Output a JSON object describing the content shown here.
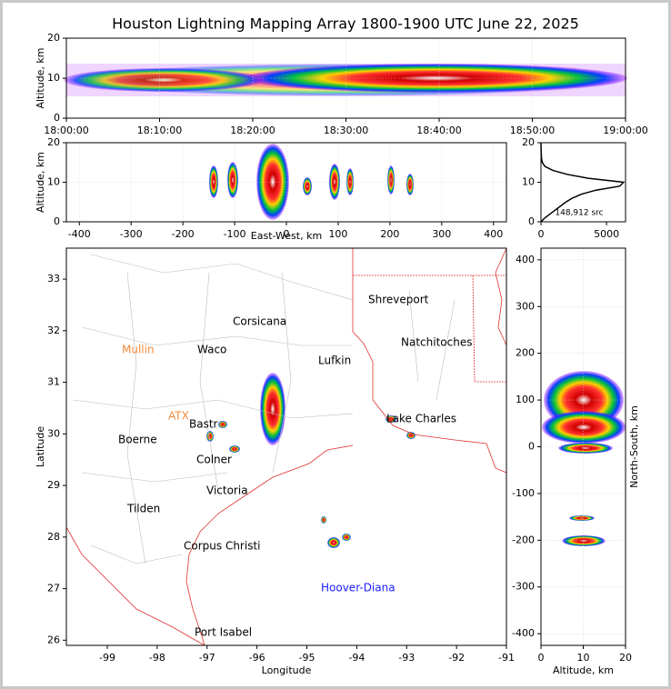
{
  "chart_data": [
    {
      "type": "time-altitude",
      "title": "Houston Lightning Mapping Array 1800-1900 UTC June 22, 2025",
      "ylabel": "Altitude, km",
      "xticks": [
        "18:00:00",
        "18:10:00",
        "18:20:00",
        "18:30:00",
        "18:40:00",
        "18:50:00",
        "19:00:00"
      ],
      "ylim": [
        0,
        20
      ],
      "yticks": [
        0,
        10,
        20
      ],
      "grid": true
    },
    {
      "type": "ew-altitude",
      "xlabel": "East-West, km",
      "ylabel": "Altitude, km",
      "xlim": [
        -425,
        425
      ],
      "xticks": [
        -400,
        -300,
        -200,
        -100,
        0,
        100,
        200,
        300,
        400
      ],
      "ylim": [
        0,
        20
      ],
      "yticks": [
        0,
        10,
        20
      ],
      "grid": true
    },
    {
      "type": "line",
      "annotation": "148,912 src",
      "x": [
        0,
        300,
        700,
        1100,
        1500,
        1900,
        2400,
        3100,
        4200,
        6000,
        6300,
        3600,
        2000,
        900,
        300,
        100,
        40,
        10,
        0
      ],
      "y": [
        0,
        1,
        2,
        3,
        4,
        5,
        6,
        7,
        8,
        9,
        10,
        11,
        12,
        13,
        14,
        15,
        16,
        18,
        20
      ],
      "color": "#000000",
      "xlim": [
        0,
        6450
      ],
      "xticks": [
        0,
        5000
      ],
      "ylim": [
        0,
        20
      ],
      "yticks": [
        0,
        10,
        20
      ],
      "grid": false
    },
    {
      "type": "map",
      "xlabel": "Longitude",
      "ylabel": "Latitude",
      "xlim": [
        -99.82,
        -91
      ],
      "xticks": [
        -99,
        -98,
        -97,
        -96,
        -95,
        -94,
        -93,
        -92,
        -91
      ],
      "ylim": [
        25.9,
        33.6
      ],
      "yticks": [
        26,
        27,
        28,
        29,
        30,
        31,
        32,
        33
      ],
      "places": [
        {
          "name": "Shreveport",
          "color": "#000000"
        },
        {
          "name": "Corsicana",
          "color": "#000000"
        },
        {
          "name": "Natchitoches",
          "color": "#000000"
        },
        {
          "name": "Mullin",
          "color": "#f08a3c"
        },
        {
          "name": "Waco",
          "color": "#000000"
        },
        {
          "name": "Lufkin",
          "color": "#000000"
        },
        {
          "name": "ATX",
          "color": "#f08a3c"
        },
        {
          "name": "Bastr",
          "color": "#000000"
        },
        {
          "name": "Lake Charles",
          "color": "#000000"
        },
        {
          "name": "Boerne",
          "color": "#000000"
        },
        {
          "name": "Colner",
          "color": "#000000"
        },
        {
          "name": "Victoria",
          "color": "#000000"
        },
        {
          "name": "Tilden",
          "color": "#000000"
        },
        {
          "name": "Corpus Christi",
          "color": "#000000"
        },
        {
          "name": "Hoover-Diana",
          "color": "#1a1aff"
        },
        {
          "name": "Port Isabel",
          "color": "#000000"
        }
      ]
    },
    {
      "type": "altitude-ns",
      "xlabel": "Altitude, km",
      "ylabel": "North-South, km",
      "xlim": [
        0,
        20
      ],
      "xticks": [
        0,
        10,
        20
      ],
      "ylim": [
        -425,
        425
      ],
      "yticks": [
        -400,
        -300,
        -200,
        -100,
        0,
        100,
        200,
        300,
        400
      ],
      "grid": true
    }
  ]
}
